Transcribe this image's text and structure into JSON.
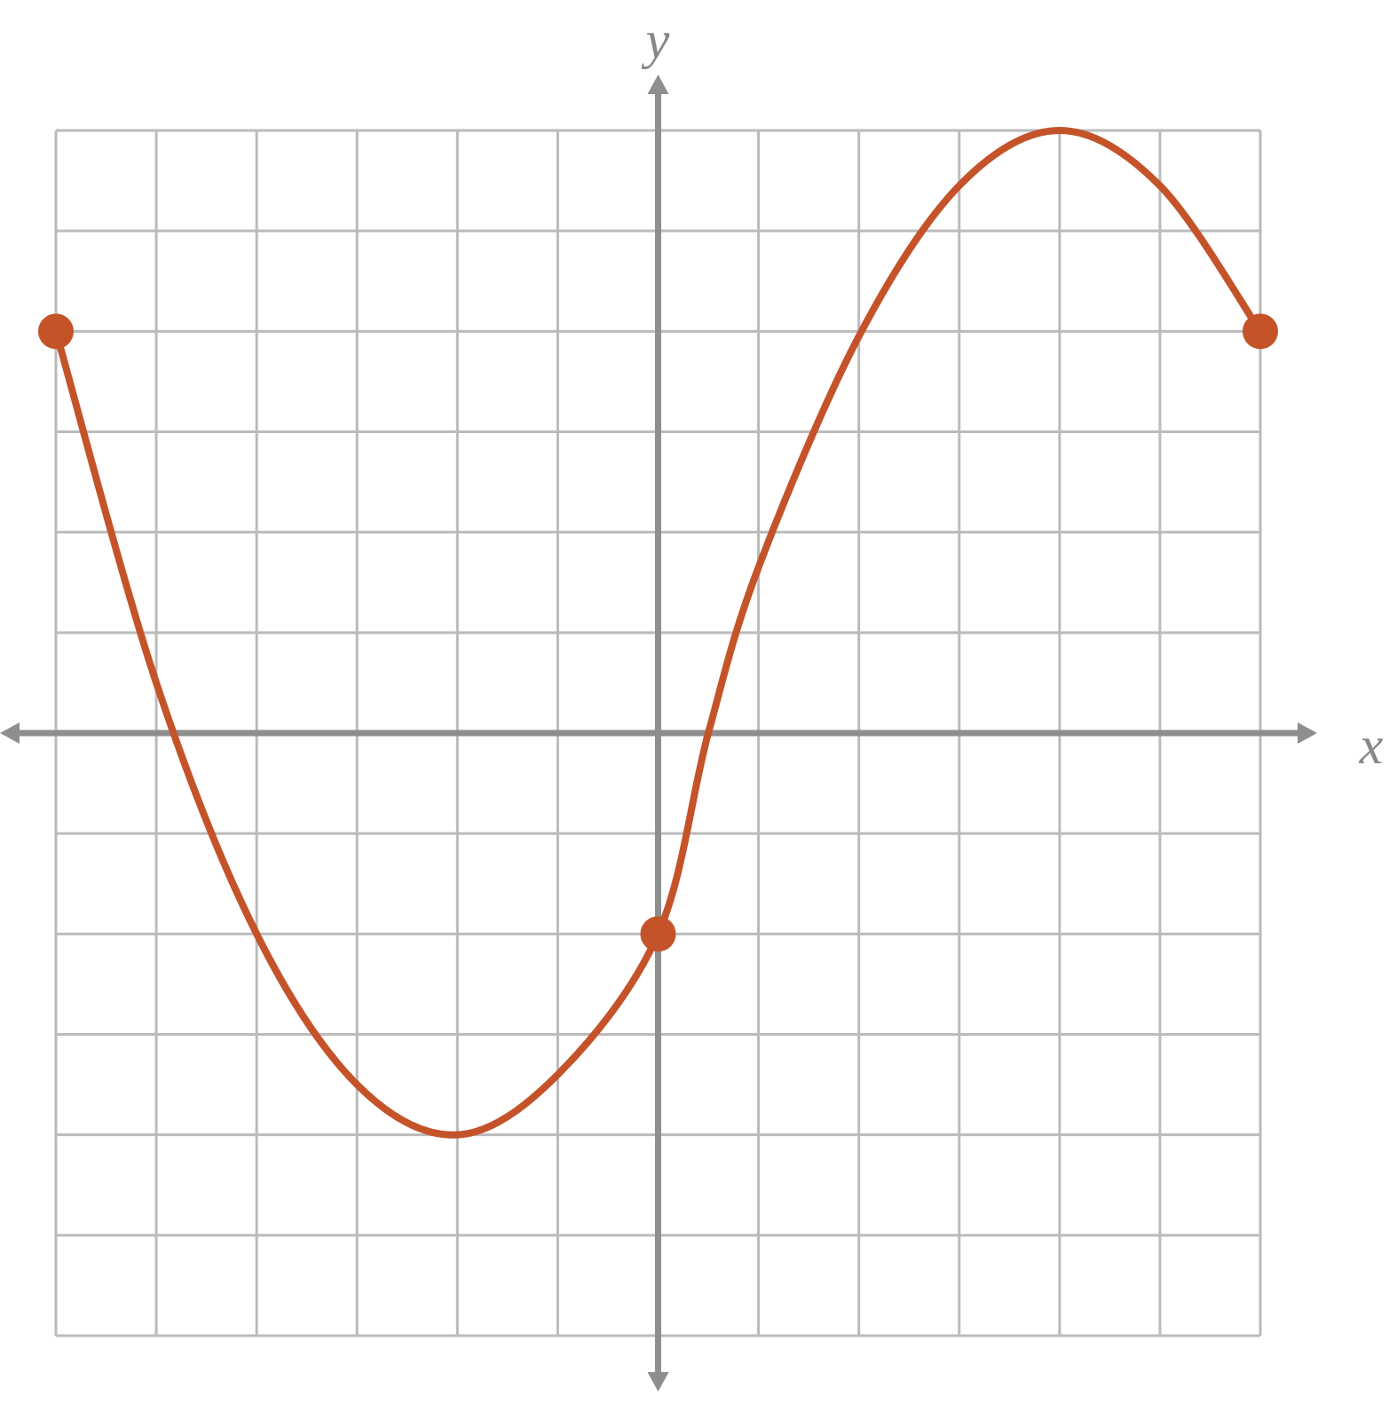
{
  "chart_data": {
    "type": "line",
    "x_label": "x",
    "y_label": "y",
    "xlim": [
      -6,
      6
    ],
    "ylim": [
      -6,
      6
    ],
    "xticks": [
      -6,
      -5,
      -4,
      -3,
      -2,
      -1,
      0,
      1,
      2,
      3,
      4,
      5,
      6
    ],
    "yticks": [
      -6,
      -5,
      -4,
      -3,
      -2,
      -1,
      0,
      1,
      2,
      3,
      4,
      5,
      6
    ],
    "grid": true,
    "color": "#c4532a",
    "x": [
      -6,
      -5,
      -4,
      -3,
      -2,
      -1,
      0,
      0.5,
      1,
      2,
      3,
      4,
      5,
      6
    ],
    "values": [
      4,
      0.5,
      -2,
      -3.5,
      -4,
      -3.4,
      -2,
      0,
      1.65,
      3.95,
      5.45,
      6,
      5.45,
      4
    ],
    "points": {
      "x": [
        -6,
        0,
        6
      ],
      "values": [
        4,
        -2,
        4
      ]
    }
  }
}
